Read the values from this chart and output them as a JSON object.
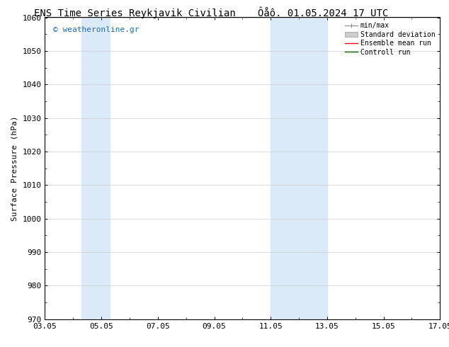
{
  "title_left": "ENS Time Series Reykjavik Civilian",
  "title_right": "Ôåô. 01.05.2024 17 UTC",
  "ylabel": "Surface Pressure (hPa)",
  "ylim": [
    970,
    1060
  ],
  "yticks": [
    970,
    980,
    990,
    1000,
    1010,
    1020,
    1030,
    1040,
    1050,
    1060
  ],
  "xtick_positions": [
    3,
    5,
    7,
    9,
    11,
    13,
    15,
    17
  ],
  "xtick_labels": [
    "03.05",
    "05.05",
    "07.05",
    "09.05",
    "11.05",
    "13.05",
    "15.05",
    "17.05"
  ],
  "xlim": [
    3.0,
    17.0
  ],
  "watermark": "© weatheronline.gr",
  "watermark_color": "#1a6bb5",
  "bg_color": "#ffffff",
  "shaded_bands": [
    {
      "xstart": 4.3,
      "xend": 5.3
    },
    {
      "xstart": 11.0,
      "xend": 12.0
    },
    {
      "xstart": 12.0,
      "xend": 13.0
    }
  ],
  "shaded_color": "#daeaf8",
  "legend_items": [
    {
      "label": "min/max",
      "color": "#aaaaaa",
      "style": "line_with_bar"
    },
    {
      "label": "Standard deviation",
      "color": "#cccccc",
      "style": "filled_rect"
    },
    {
      "label": "Ensemble mean run",
      "color": "#ff0000",
      "style": "line"
    },
    {
      "label": "Controll run",
      "color": "#006600",
      "style": "line"
    }
  ],
  "grid_color": "#cccccc",
  "spine_color": "#000000",
  "title_fontsize": 10,
  "label_fontsize": 8,
  "tick_fontsize": 8,
  "watermark_fontsize": 8,
  "legend_fontsize": 7
}
